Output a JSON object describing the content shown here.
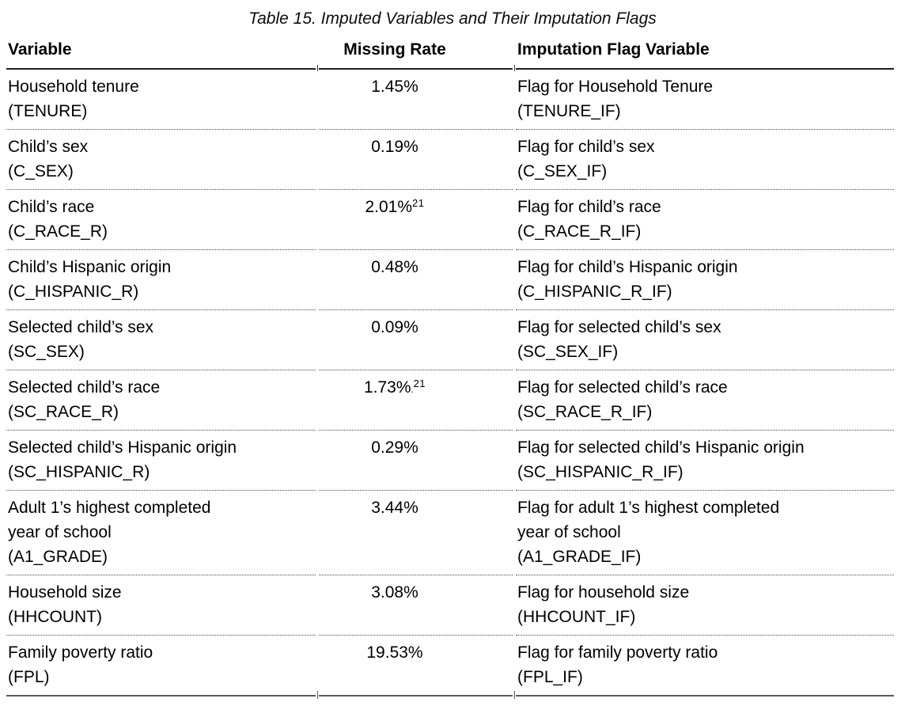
{
  "page": {
    "background": "#ffffff",
    "text_color": "#000000"
  },
  "colors": {
    "header_rule": "#1f1f1f",
    "row_divider_dotted": "#4a4a4a",
    "bottom_rule": "#595959"
  },
  "table": {
    "title": "Table 15. Imputed Variables and Their Imputation Flags",
    "columns": [
      {
        "label": "Variable"
      },
      {
        "label": "Missing Rate"
      },
      {
        "label": "Imputation Flag Variable"
      }
    ],
    "rows": [
      {
        "variable": "Household tenure",
        "variable_code": "(TENURE)",
        "rate": "1.45%",
        "flag": "Flag for Household Tenure",
        "flag_code": "(TENURE_IF)"
      },
      {
        "variable": "Child’s sex",
        "variable_code": "(C_SEX)",
        "rate": "0.19%",
        "flag": "Flag for child’s sex",
        "flag_code": "(C_SEX_IF)"
      },
      {
        "variable": "Child’s race",
        "variable_code": "(C_RACE_R)",
        "rate": "2.01%",
        "rate_sup": "21",
        "flag": "Flag for child’s race",
        "flag_code": "(C_RACE_R_IF)"
      },
      {
        "variable": "Child’s Hispanic origin",
        "variable_code": "(C_HISPANIC_R)",
        "rate": "0.48%",
        "flag": "Flag for child’s Hispanic origin",
        "flag_code": "(C_HISPANIC_R_IF)"
      },
      {
        "variable": "Selected child’s sex",
        "variable_code": "(SC_SEX)",
        "rate": "0.09%",
        "flag": "Flag for selected child’s sex",
        "flag_code": "(SC_SEX_IF)"
      },
      {
        "variable": "Selected child’s race",
        "variable_code": "(SC_RACE_R)",
        "rate": "1.73%",
        "rate_dot": ".",
        "rate_sup": "21",
        "flag": "Flag for selected child’s race",
        "flag_code": "(SC_RACE_R_IF)"
      },
      {
        "variable": "Selected child’s Hispanic origin",
        "variable_code": "(SC_HISPANIC_R)",
        "rate": "0.29%",
        "flag": "Flag for selected child’s Hispanic origin",
        "flag_code": "(SC_HISPANIC_R_IF)"
      },
      {
        "variable": "Adult 1’s highest completed\nyear of school",
        "variable_code": "(A1_GRADE)",
        "rate": "3.44%",
        "flag": "Flag for adult 1’s highest completed\nyear of school",
        "flag_code": "(A1_GRADE_IF)"
      },
      {
        "variable": "Household size",
        "variable_code": "(HHCOUNT)",
        "rate": "3.08%",
        "flag": "Flag for household size",
        "flag_code": "(HHCOUNT_IF)"
      },
      {
        "variable": "Family poverty ratio",
        "variable_code": "(FPL)",
        "rate": "19.53%",
        "flag": "Flag for family poverty ratio",
        "flag_code": "(FPL_IF)"
      }
    ]
  }
}
